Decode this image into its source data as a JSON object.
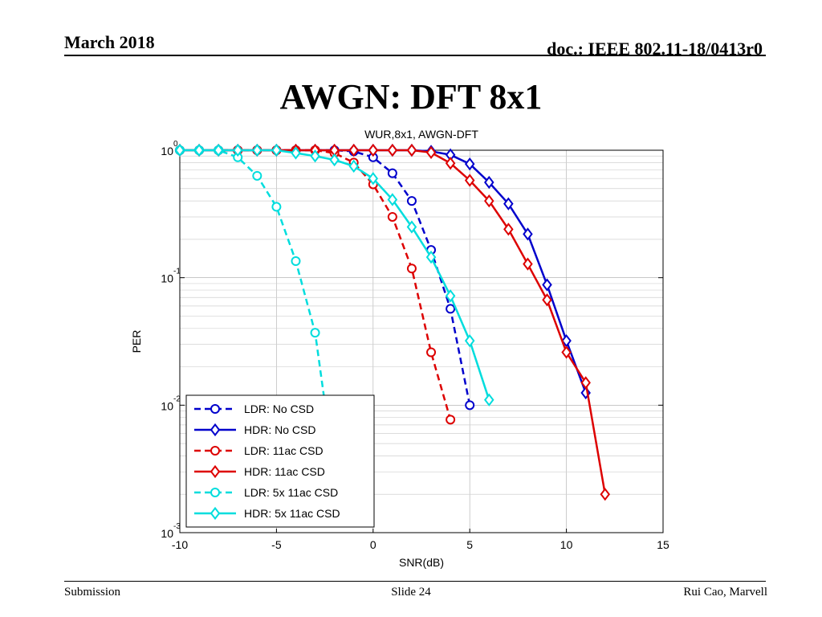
{
  "header": {
    "date": "March 2018",
    "doc": "doc.: IEEE 802.11-18/0413r0"
  },
  "slide_title": "AWGN: DFT 8x1",
  "footer": {
    "left": "Submission",
    "center": "Slide 24",
    "right": "Rui Cao, Marvell"
  },
  "chart_data": {
    "type": "line",
    "title": "WUR,8x1, AWGN-DFT",
    "xlabel": "SNR(dB)",
    "ylabel": "PER",
    "xlim": [
      -10,
      15
    ],
    "ylim": [
      0.001,
      1
    ],
    "yscale": "log",
    "grid": true,
    "legend": "bottom-left",
    "xticks": [
      "-10",
      "-5",
      "0",
      "5",
      "10",
      "15"
    ],
    "yticks": [
      {
        "base": "10",
        "exp": "0"
      },
      {
        "base": "10",
        "exp": "-1"
      },
      {
        "base": "10",
        "exp": "-2"
      },
      {
        "base": "10",
        "exp": "-3"
      }
    ],
    "series": [
      {
        "name": "LDR: No CSD",
        "color": "#0000cc",
        "dash": true,
        "marker": "circle",
        "x": [
          -10,
          -9,
          -8,
          -7,
          -6,
          -5,
          -4,
          -3,
          -2,
          -1,
          0,
          1,
          2,
          3,
          4,
          5
        ],
        "y": [
          1,
          1,
          1,
          1,
          1,
          1,
          1,
          1,
          1,
          0.98,
          0.88,
          0.66,
          0.4,
          0.165,
          0.057,
          0.01
        ]
      },
      {
        "name": "HDR: No CSD",
        "color": "#0000cc",
        "dash": false,
        "marker": "diamond",
        "x": [
          -10,
          -9,
          -8,
          -7,
          -6,
          -5,
          -4,
          -3,
          -2,
          -1,
          0,
          1,
          2,
          3,
          4,
          5,
          6,
          7,
          8,
          9,
          10,
          11
        ],
        "y": [
          1,
          1,
          1,
          1,
          1,
          1,
          1,
          1,
          1,
          1,
          1,
          1,
          1,
          0.98,
          0.92,
          0.78,
          0.56,
          0.38,
          0.22,
          0.088,
          0.032,
          0.0125
        ]
      },
      {
        "name": "LDR: 11ac CSD",
        "color": "#dd0000",
        "dash": true,
        "marker": "circle",
        "x": [
          -10,
          -9,
          -8,
          -7,
          -6,
          -5,
          -4,
          -3,
          -2,
          -1,
          0,
          1,
          2,
          3,
          4
        ],
        "y": [
          1,
          1,
          1,
          1,
          1,
          1,
          1,
          1,
          0.95,
          0.8,
          0.54,
          0.3,
          0.118,
          0.026,
          0.0077
        ]
      },
      {
        "name": "HDR: 11ac CSD",
        "color": "#dd0000",
        "dash": false,
        "marker": "diamond",
        "x": [
          -10,
          -9,
          -8,
          -7,
          -6,
          -5,
          -4,
          -3,
          -2,
          -1,
          0,
          1,
          2,
          3,
          4,
          5,
          6,
          7,
          8,
          9,
          10,
          11,
          12
        ],
        "y": [
          1,
          1,
          1,
          1,
          1,
          1,
          1,
          1,
          1,
          1,
          1,
          1,
          1,
          0.96,
          0.79,
          0.58,
          0.4,
          0.24,
          0.128,
          0.067,
          0.026,
          0.015,
          0.002
        ]
      },
      {
        "name": "LDR: 5x 11ac CSD",
        "color": "#00dddd",
        "dash": true,
        "marker": "circle",
        "x": [
          -10,
          -9,
          -8,
          -7,
          -6,
          -5,
          -4,
          -3,
          -2.5
        ],
        "y": [
          1,
          1,
          1,
          0.88,
          0.63,
          0.36,
          0.135,
          0.037,
          0.0105
        ]
      },
      {
        "name": "HDR: 5x 11ac CSD",
        "color": "#00dddd",
        "dash": false,
        "marker": "diamond",
        "x": [
          -10,
          -9,
          -8,
          -7,
          -6,
          -5,
          -4,
          -3,
          -2,
          -1,
          0,
          1,
          2,
          3,
          4,
          5,
          6
        ],
        "y": [
          1,
          1,
          1,
          1,
          1,
          1,
          0.95,
          0.9,
          0.84,
          0.75,
          0.6,
          0.41,
          0.25,
          0.145,
          0.072,
          0.032,
          0.011
        ]
      }
    ]
  }
}
